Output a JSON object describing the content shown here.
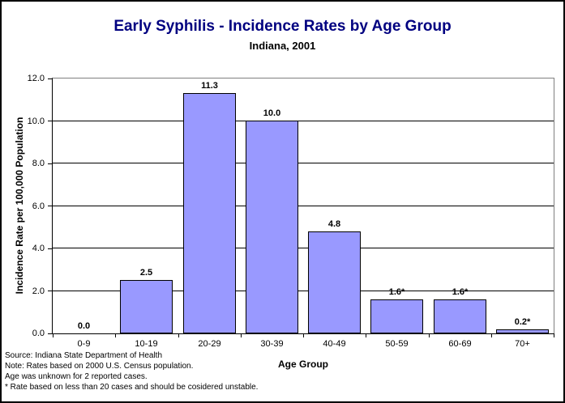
{
  "chart_data": {
    "type": "bar",
    "title": "Early Syphilis - Incidence Rates by Age Group",
    "subtitle": "Indiana, 2001",
    "xlabel": "Age Group",
    "ylabel": "Incidence Rate per 100,000 Population",
    "categories": [
      "0-9",
      "10-19",
      "20-29",
      "30-39",
      "40-49",
      "50-59",
      "60-69",
      "70+"
    ],
    "values": [
      0.0,
      2.5,
      11.3,
      10.0,
      4.8,
      1.6,
      1.6,
      0.2
    ],
    "value_labels": [
      "0.0",
      "2.5",
      "11.3",
      "10.0",
      "4.8",
      "1.6*",
      "1.6*",
      "0.2*"
    ],
    "ylim": [
      0,
      12
    ],
    "ytick_step": 2,
    "ytick_labels": [
      "0.0",
      "2.0",
      "4.0",
      "6.0",
      "8.0",
      "10.0",
      "12.0"
    ],
    "grid": true,
    "legend": false
  },
  "styles": {
    "title_color": "#000080",
    "subtitle_color": "#000000",
    "bar_fill": "#9999FF",
    "bar_border": "#000000",
    "gridline_color": "#000000",
    "plot_border_color": "#808080",
    "axis_color": "#000000",
    "text_color": "#000000"
  },
  "footnotes": [
    "Source: Indiana State Department of Health",
    "Note: Rates based on 2000 U.S. Census population.",
    "Age was unknown for 2 reported cases.",
    "* Rate based on less than 20 cases and should be cosidered unstable."
  ]
}
